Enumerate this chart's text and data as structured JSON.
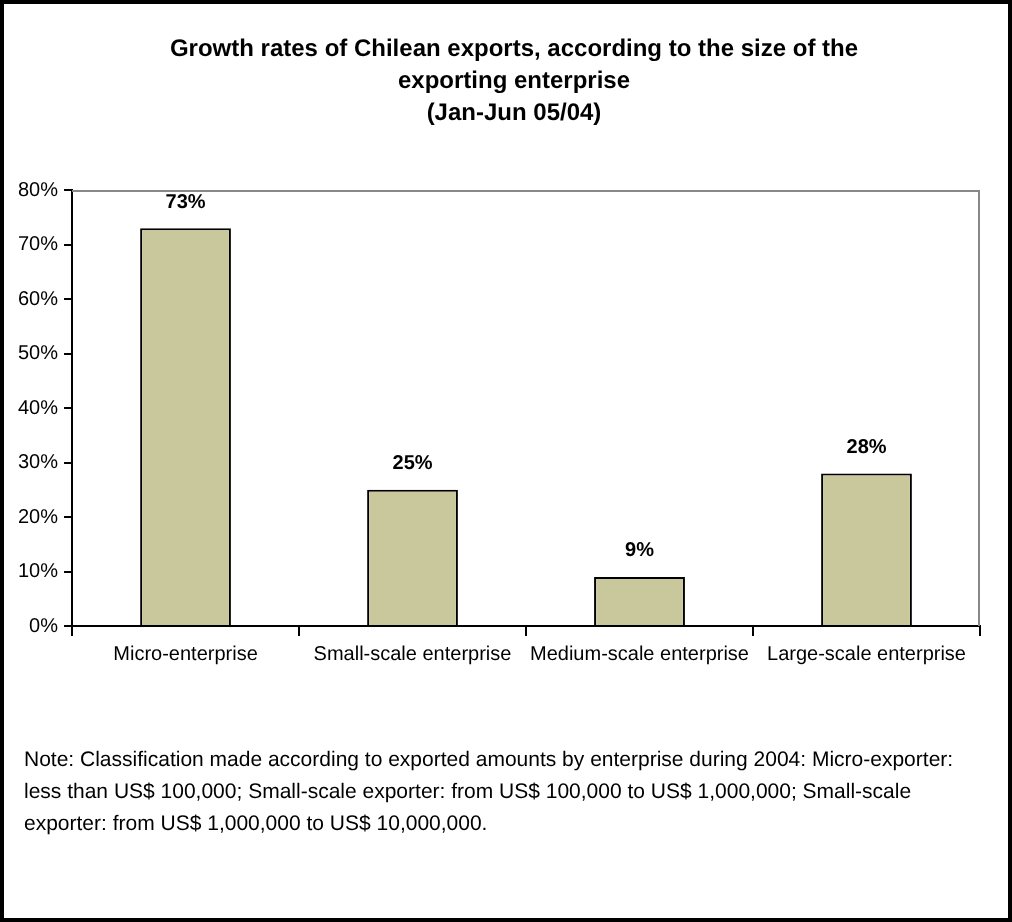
{
  "chart_data": {
    "type": "bar",
    "title": "Growth rates of Chilean exports, according to the size of the exporting enterprise\n(Jan-Jun 05/04)",
    "categories": [
      "Micro-enterprise",
      "Small-scale enterprise",
      "Medium-scale enterprise",
      "Large-scale enterprise"
    ],
    "values": [
      73,
      25,
      9,
      28
    ],
    "value_labels": [
      "73%",
      "25%",
      "9%",
      "28%"
    ],
    "color": "#c9c89c",
    "ylim": [
      0,
      80
    ],
    "yticks": [
      {
        "value": 0,
        "label": "0%"
      },
      {
        "value": 10,
        "label": "10%"
      },
      {
        "value": 20,
        "label": "20%"
      },
      {
        "value": 30,
        "label": "30%"
      },
      {
        "value": 40,
        "label": "40%"
      },
      {
        "value": 50,
        "label": "50%"
      },
      {
        "value": 60,
        "label": "60%"
      },
      {
        "value": 70,
        "label": "70%"
      },
      {
        "value": 80,
        "label": "80%"
      }
    ],
    "grid": false,
    "annotations": [
      "Note: Classification made according to exported amounts by enterprise during 2004: Micro-exporter: less than US$ 100,000; Small-scale exporter: from US$ 100,000 to US$ 1,000,000; Small-scale exporter: from US$ 1,000,000 to US$ 10,000,000."
    ]
  }
}
